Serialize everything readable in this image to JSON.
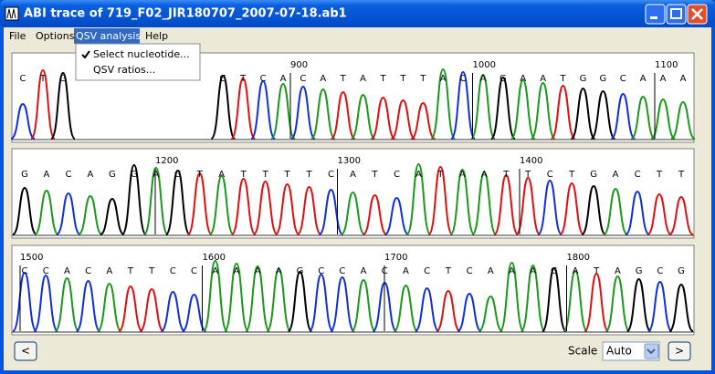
{
  "window": {
    "title": "ABI trace of 719_F02_JIR180707_2007-07-18.ab1"
  },
  "menu": {
    "items": [
      "File",
      "Options",
      "QSV analysis",
      "Help"
    ],
    "dropdown": [
      "Select nucleotide...",
      "QSV ratios..."
    ]
  },
  "panels": [
    {
      "bases": [
        [
          "C",
          "T",
          "G"
        ],
        [
          "G",
          "T",
          "C",
          "A",
          "C",
          "A",
          "T",
          "A",
          "T",
          "T",
          "T",
          "A",
          "C",
          "A",
          "G",
          "A",
          "A",
          "T",
          "G",
          "G",
          "C",
          "A",
          "A",
          "A"
        ]
      ],
      "positions": [
        900,
        1000,
        1100
      ]
    },
    {
      "bases": [
        [
          "G",
          "A",
          "C",
          "A",
          "G",
          "G",
          "A",
          "G",
          "T",
          "A",
          "T",
          "T",
          "T",
          "T",
          "C",
          "A",
          "T",
          "C",
          "A",
          "T",
          "A",
          "A",
          "T",
          "T",
          "C",
          "T",
          "G",
          "A",
          "C",
          "T",
          "T"
        ]
      ],
      "positions": [
        1200,
        1300,
        1400
      ]
    },
    {
      "bases": [
        [
          "C",
          "C",
          "A",
          "C",
          "A",
          "T",
          "T",
          "C",
          "C",
          "A",
          "A",
          "A",
          "A",
          "G",
          "C",
          "C",
          "A",
          "C",
          "A",
          "C",
          "T",
          "C",
          "A",
          "A",
          "A",
          "G",
          "A",
          "T",
          "A",
          "G",
          "C",
          "G"
        ]
      ],
      "positions": [
        1500,
        1600,
        1700,
        1800
      ]
    }
  ],
  "controls": {
    "prev": "<",
    "next": ">",
    "scale_label": "Scale",
    "scale_value": "Auto"
  }
}
